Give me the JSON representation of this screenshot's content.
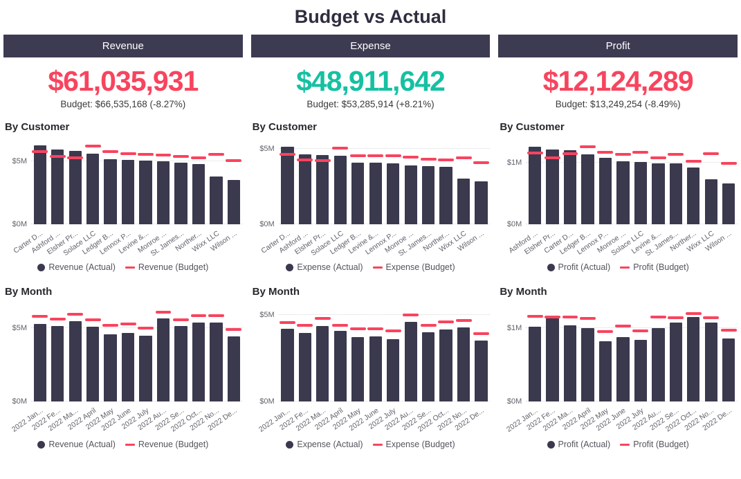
{
  "title": "Budget vs Actual",
  "colors": {
    "header_bg": "#3d3b52",
    "bar_dark": "#3b394e",
    "budget_red": "#f8445e",
    "kpi_red": "#f8445e",
    "kpi_teal": "#15c1a2",
    "axis_text": "#63616b",
    "grid_line": "#d9d9d9"
  },
  "columns": [
    {
      "header": "Revenue",
      "kpi_value": "$61,035,931",
      "kpi_color": "#f8445e",
      "budget_note": "Budget: $66,535,168 (-8.27%)",
      "customer_section_label": "By Customer",
      "month_section_label": "By Month"
    },
    {
      "header": "Expense",
      "kpi_value": "$48,911,642",
      "kpi_color": "#15c1a2",
      "budget_note": "Budget: $53,285,914 (+8.21%)",
      "customer_section_label": "By Customer",
      "month_section_label": "By Month"
    },
    {
      "header": "Profit",
      "kpi_value": "$12,124,289",
      "kpi_color": "#f8445e",
      "budget_note": "Budget: $13,249,254 (-8.49%)",
      "customer_section_label": "By Customer",
      "month_section_label": "By Month"
    }
  ],
  "chart_data": [
    {
      "id": "revenue-by-customer",
      "type": "bar",
      "title": "By Customer",
      "unit": "USD millions",
      "ylim": [
        0,
        6.6
      ],
      "grid": true,
      "legend_position": "bottom",
      "yticks": [
        {
          "value": 0,
          "label": "$0M"
        },
        {
          "value": 5,
          "label": "$5M"
        }
      ],
      "categories": [
        "Carter D...",
        "Ashford ...",
        "Elsher Pr...",
        "Solace LLC",
        "Ledger B...",
        "Lennox P...",
        "Levine &...",
        "Monroe ...",
        "St. James...",
        "Norther...",
        "Wixx LLC",
        "Wilson ..."
      ],
      "series": [
        {
          "name": "Revenue (Actual)",
          "style": "bar",
          "color": "#3b394e",
          "values": [
            6.3,
            5.95,
            5.85,
            5.6,
            5.2,
            5.1,
            5.05,
            5.0,
            4.9,
            4.8,
            3.8,
            3.5
          ]
        },
        {
          "name": "Revenue (Budget)",
          "style": "dash",
          "color": "#f8445e",
          "values": [
            5.8,
            5.4,
            5.3,
            6.2,
            5.8,
            5.6,
            5.55,
            5.5,
            5.4,
            5.3,
            5.55,
            5.05
          ]
        }
      ]
    },
    {
      "id": "expense-by-customer",
      "type": "bar",
      "title": "By Customer",
      "unit": "USD millions",
      "ylim": [
        0,
        5.5
      ],
      "grid": true,
      "legend_position": "bottom",
      "yticks": [
        {
          "value": 0,
          "label": "$0M"
        },
        {
          "value": 5,
          "label": "$5M"
        }
      ],
      "categories": [
        "Carter D...",
        "Ashford ...",
        "Elsher Pr...",
        "Solace LLC",
        "Ledger B...",
        "Levine &...",
        "Lennox P...",
        "Monroe ...",
        "St. James...",
        "Norther...",
        "Wixx LLC",
        "Wilson ..."
      ],
      "series": [
        {
          "name": "Expense (Actual)",
          "style": "bar",
          "color": "#3b394e",
          "values": [
            5.15,
            4.65,
            4.6,
            4.55,
            4.1,
            4.1,
            4.05,
            3.9,
            3.85,
            3.8,
            3.05,
            2.85
          ]
        },
        {
          "name": "Expense (Budget)",
          "style": "dash",
          "color": "#f8445e",
          "values": [
            4.65,
            4.25,
            4.2,
            5.05,
            4.55,
            4.55,
            4.55,
            4.45,
            4.3,
            4.25,
            4.4,
            4.1
          ]
        }
      ]
    },
    {
      "id": "profit-by-customer",
      "type": "bar",
      "title": "By Customer",
      "unit": "USD millions",
      "ylim": [
        0,
        1.35
      ],
      "grid": true,
      "legend_position": "bottom",
      "yticks": [
        {
          "value": 0,
          "label": "$0M"
        },
        {
          "value": 1,
          "label": "$1M"
        }
      ],
      "categories": [
        "Ashford ...",
        "Elsher Pr...",
        "Carter D...",
        "Ledger B...",
        "Lennox P...",
        "Monroe ...",
        "Solace LLC",
        "Levine &...",
        "St. James...",
        "Norther...",
        "Wixx LLC",
        "Wilson ..."
      ],
      "series": [
        {
          "name": "Profit (Actual)",
          "style": "bar",
          "color": "#3b394e",
          "values": [
            1.26,
            1.22,
            1.2,
            1.14,
            1.08,
            1.02,
            1.01,
            0.99,
            0.99,
            0.92,
            0.73,
            0.66
          ]
        },
        {
          "name": "Profit (Budget)",
          "style": "dash",
          "color": "#f8445e",
          "values": [
            1.16,
            1.08,
            1.15,
            1.26,
            1.17,
            1.14,
            1.17,
            1.08,
            1.14,
            1.02,
            1.15,
            0.99
          ]
        }
      ]
    },
    {
      "id": "revenue-by-month",
      "type": "bar",
      "title": "By Month",
      "unit": "USD millions",
      "ylim": [
        0,
        6.5
      ],
      "grid": true,
      "legend_position": "bottom",
      "yticks": [
        {
          "value": 0,
          "label": "$0M"
        },
        {
          "value": 5,
          "label": "$5M"
        }
      ],
      "categories": [
        "2022 Jan...",
        "2022 Fe...",
        "2022 Ma...",
        "2022 April",
        "2022 May",
        "2022 June",
        "2022 July",
        "2022 Au...",
        "2022 Se...",
        "2022 Oct...",
        "2022 No...",
        "2022 De..."
      ],
      "series": [
        {
          "name": "Revenue (Actual)",
          "style": "bar",
          "color": "#3b394e",
          "values": [
            5.3,
            5.15,
            5.45,
            5.1,
            4.55,
            4.65,
            4.5,
            5.65,
            5.15,
            5.35,
            5.35,
            4.45
          ]
        },
        {
          "name": "Revenue (Budget)",
          "style": "dash",
          "color": "#f8445e",
          "values": [
            5.8,
            5.6,
            5.95,
            5.55,
            5.2,
            5.3,
            5.0,
            6.1,
            5.55,
            5.85,
            5.85,
            4.9
          ]
        }
      ]
    },
    {
      "id": "expense-by-month",
      "type": "bar",
      "title": "By Month",
      "unit": "USD millions",
      "ylim": [
        0,
        5.5
      ],
      "grid": true,
      "legend_position": "bottom",
      "yticks": [
        {
          "value": 0,
          "label": "$0M"
        },
        {
          "value": 5,
          "label": "$5M"
        }
      ],
      "categories": [
        "2022 Jan...",
        "2022 Fe...",
        "2022 Ma...",
        "2022 April",
        "2022 May",
        "2022 June",
        "2022 July",
        "2022 Au...",
        "2022 Se...",
        "2022 Oct...",
        "2022 No...",
        "2022 De..."
      ],
      "series": [
        {
          "name": "Expense (Actual)",
          "style": "bar",
          "color": "#3b394e",
          "values": [
            4.2,
            3.95,
            4.35,
            4.05,
            3.7,
            3.75,
            3.6,
            4.6,
            4.0,
            4.15,
            4.25,
            3.5
          ]
        },
        {
          "name": "Expense (Budget)",
          "style": "dash",
          "color": "#f8445e",
          "values": [
            4.55,
            4.4,
            4.8,
            4.4,
            4.2,
            4.2,
            4.05,
            5.0,
            4.4,
            4.6,
            4.65,
            3.9
          ]
        }
      ]
    },
    {
      "id": "profit-by-month",
      "type": "bar",
      "title": "By Month",
      "unit": "USD millions",
      "ylim": [
        0,
        1.3
      ],
      "grid": true,
      "legend_position": "bottom",
      "yticks": [
        {
          "value": 0,
          "label": "$0M"
        },
        {
          "value": 1,
          "label": "$1M"
        }
      ],
      "categories": [
        "2022 Jan...",
        "2022 Fe...",
        "2022 Ma...",
        "2022 April",
        "2022 May",
        "2022 June",
        "2022 July",
        "2022 Au...",
        "2022 Se...",
        "2022 Oct...",
        "2022 No...",
        "2022 De..."
      ],
      "series": [
        {
          "name": "Profit (Actual)",
          "style": "bar",
          "color": "#3b394e",
          "values": [
            1.02,
            1.13,
            1.04,
            1.0,
            0.82,
            0.88,
            0.84,
            1.0,
            1.07,
            1.15,
            1.07,
            0.86
          ]
        },
        {
          "name": "Profit (Budget)",
          "style": "dash",
          "color": "#f8445e",
          "values": [
            1.16,
            1.15,
            1.15,
            1.13,
            0.95,
            1.03,
            0.96,
            1.15,
            1.14,
            1.2,
            1.14,
            0.97
          ]
        }
      ]
    }
  ]
}
